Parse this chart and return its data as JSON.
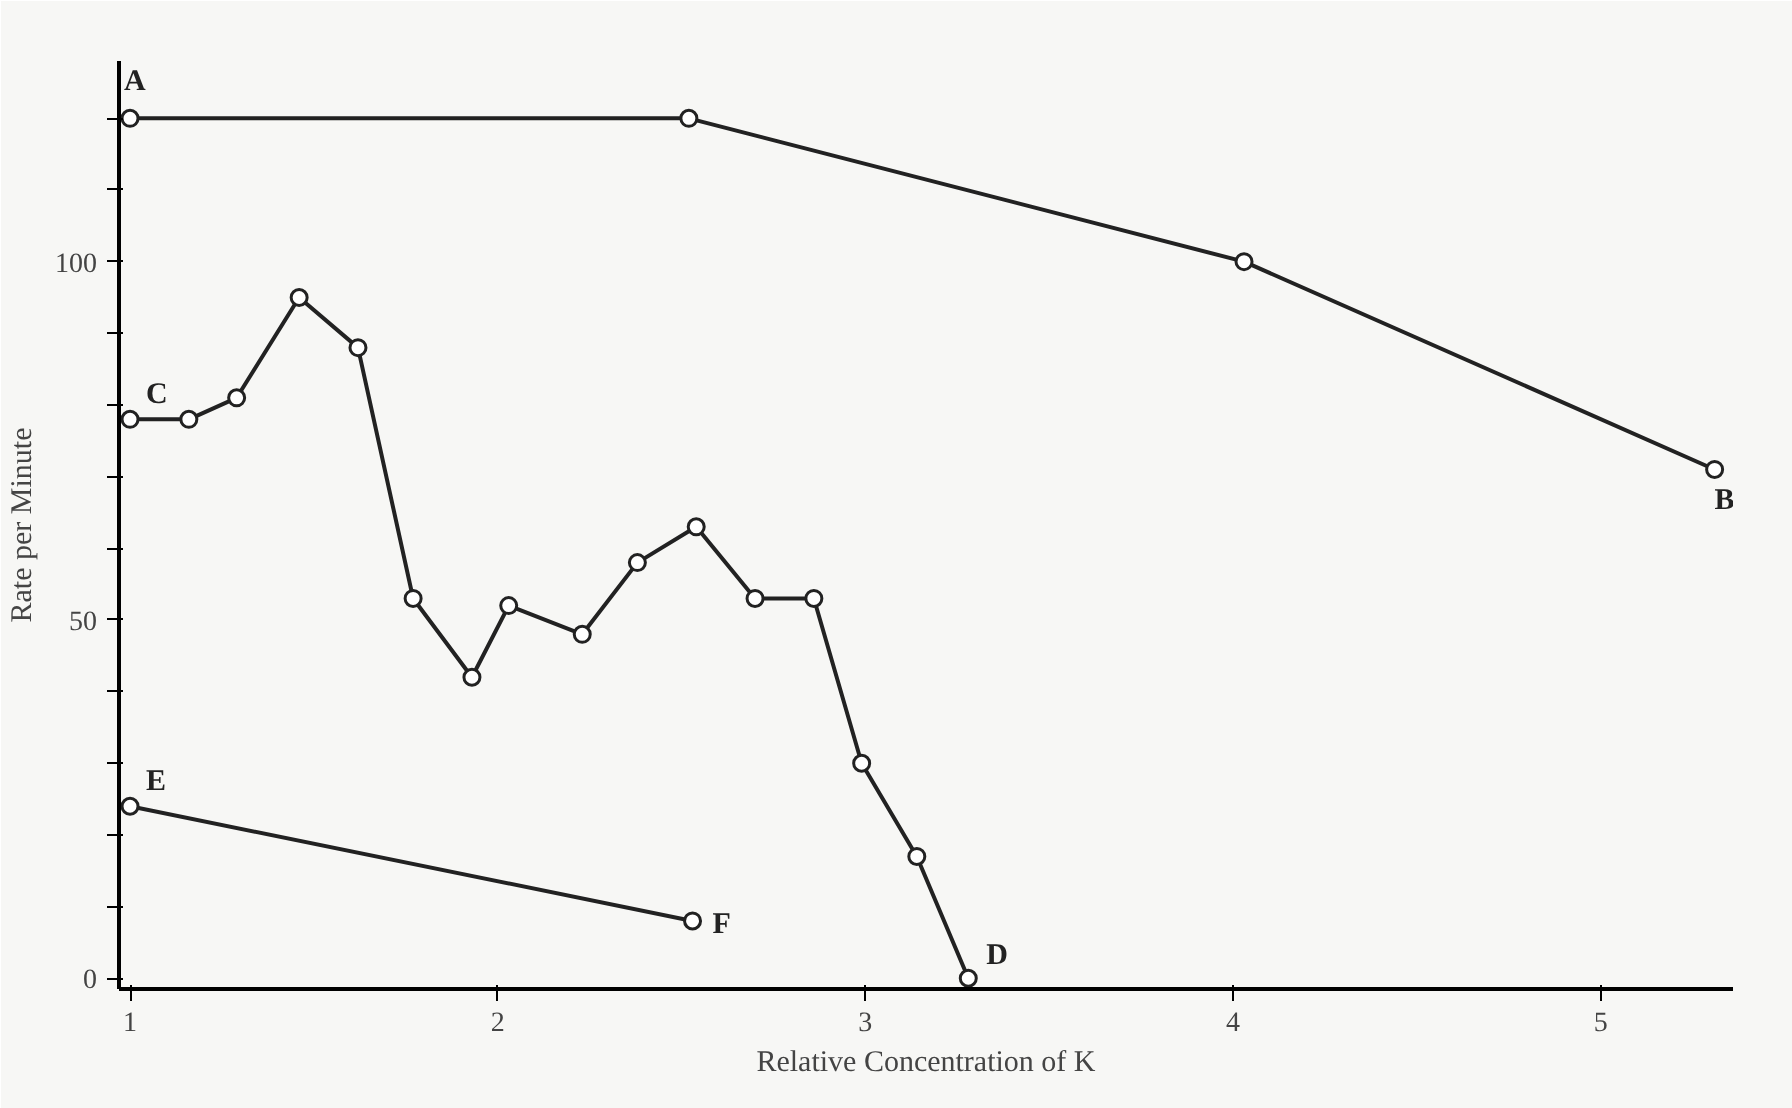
{
  "chart_data": {
    "type": "line",
    "xlabel": "Relative Concentration of K",
    "ylabel": "Rate per Minute",
    "series": [
      {
        "color": "#222222",
        "x": [
          1,
          2.52,
          4.03,
          5.31
        ],
        "values": [
          120,
          120,
          100,
          71
        ]
      },
      {
        "color": "#222222",
        "x": [
          1,
          1.16,
          1.29,
          1.46,
          1.62,
          1.77,
          1.93,
          2.03,
          2.23,
          2.38,
          2.54,
          2.7,
          2.86,
          2.99,
          3.14,
          3.28
        ],
        "values": [
          78,
          78,
          81,
          95,
          88,
          53,
          42,
          52,
          48,
          58,
          63,
          53,
          53,
          30,
          17,
          0
        ]
      },
      {
        "color": "#222222",
        "x": [
          1,
          2.53
        ],
        "values": [
          24,
          8
        ]
      }
    ],
    "xlim": [
      0.97,
      5.36
    ],
    "ylim": [
      -1.5,
      128
    ],
    "xticks": [
      1,
      2,
      3,
      4,
      5
    ],
    "yticks": [
      0,
      {
        "value": 10,
        "label": null
      },
      {
        "value": 20,
        "label": null
      },
      {
        "value": 30,
        "label": null
      },
      {
        "value": 40,
        "label": null
      },
      50,
      {
        "value": 60,
        "label": null
      },
      {
        "value": 70,
        "label": null
      },
      {
        "value": 80,
        "label": null
      },
      {
        "value": 90,
        "label": null
      },
      100,
      {
        "value": 110,
        "label": null
      },
      {
        "value": 120,
        "label": null
      }
    ],
    "grid": false,
    "marker": "circle",
    "line_style": "solid",
    "annotations": [
      {
        "text": "A",
        "x": 1,
        "y": 120
      },
      {
        "text": "B",
        "x": 5.31,
        "y": 71
      },
      {
        "text": "C",
        "x": 1,
        "y": 78
      },
      {
        "text": "D",
        "x": 3.28,
        "y": 0
      },
      {
        "text": "E",
        "x": 1,
        "y": 24
      },
      {
        "text": "F",
        "x": 2.53,
        "y": 8
      }
    ]
  }
}
